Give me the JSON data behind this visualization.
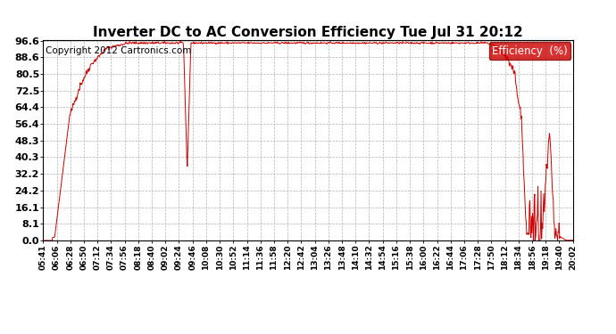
{
  "title": "Inverter DC to AC Conversion Efficiency Tue Jul 31 20:12",
  "copyright": "Copyright 2012 Cartronics.com",
  "legend_label": "Efficiency  (%)",
  "legend_bg": "#cc0000",
  "legend_fg": "#ffffff",
  "line_color": "#cc0000",
  "bg_color": "#ffffff",
  "plot_bg": "#ffffff",
  "grid_color": "#aaaaaa",
  "yticks": [
    0.0,
    8.1,
    16.1,
    24.2,
    32.2,
    40.3,
    48.3,
    56.4,
    64.4,
    72.5,
    80.5,
    88.6,
    96.6
  ],
  "xtick_labels": [
    "05:41",
    "06:06",
    "06:28",
    "06:50",
    "07:12",
    "07:34",
    "07:56",
    "08:18",
    "08:40",
    "09:02",
    "09:24",
    "09:46",
    "10:08",
    "10:30",
    "10:52",
    "11:14",
    "11:36",
    "11:58",
    "12:20",
    "12:42",
    "13:04",
    "13:26",
    "13:48",
    "14:10",
    "14:32",
    "14:54",
    "15:16",
    "15:38",
    "16:00",
    "16:22",
    "16:44",
    "17:06",
    "17:28",
    "17:50",
    "18:12",
    "18:34",
    "18:56",
    "19:18",
    "19:40",
    "20:02"
  ],
  "ymin": 0.0,
  "ymax": 96.6,
  "title_fontsize": 11,
  "ytick_fontsize": 8,
  "xtick_fontsize": 6.5,
  "copyright_fontsize": 7.5,
  "legend_fontsize": 8.5
}
